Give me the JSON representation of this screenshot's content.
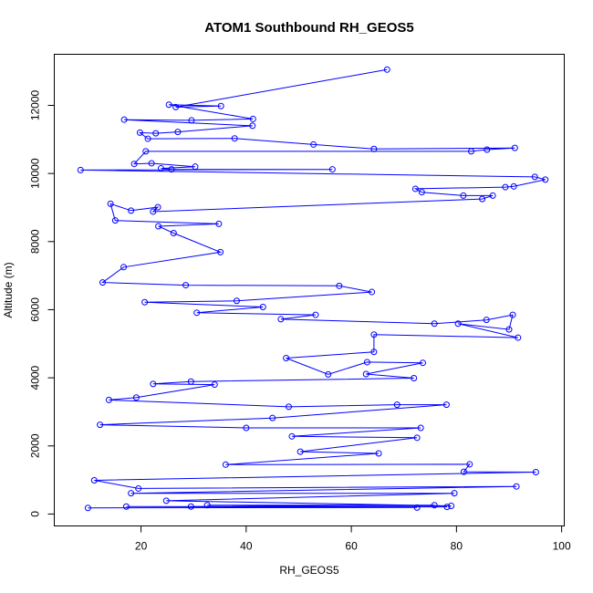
{
  "chart_data": {
    "type": "line",
    "title": "ATOM1 Southbound RH_GEOS5",
    "xlabel": "RH_GEOS5",
    "ylabel": "Altitude (m)",
    "xlim": [
      3.5,
      100.5
    ],
    "ylim": [
      -350,
      13500
    ],
    "xticks": [
      20,
      40,
      60,
      80,
      100
    ],
    "yticks": [
      0,
      2000,
      4000,
      6000,
      8000,
      10000,
      12000
    ],
    "grid": false,
    "legend": "none",
    "marker": "open-circle",
    "line_color": "#0000ff",
    "series": [
      {
        "x": [
          66.8,
          26.6,
          35.2,
          25.3,
          41.3,
          29.6,
          16.8,
          41.2,
          27,
          22.8,
          19.8,
          21.3,
          37.8,
          52.8,
          64.3,
          91.1,
          85.8,
          82.8,
          20.9,
          18.7,
          22,
          30.3,
          23.8,
          25.8,
          56.4,
          8.5,
          94.9,
          96.9,
          90.9,
          89.3,
          72.2,
          73.4,
          81.3,
          86.9,
          84.9,
          22.3,
          23.2,
          18.1,
          14.2,
          15.1,
          34.8,
          23.3,
          26.2,
          35.1,
          16.7,
          12.7,
          28.5,
          57.7,
          63.9,
          38.2,
          20.7,
          43.2,
          30.6,
          53.2,
          46.6,
          75.8,
          85.7,
          90.7,
          90,
          80.3,
          91.7,
          64.3,
          64.3,
          47.6,
          55.6,
          63,
          73.6,
          62.8,
          71.9,
          29.5,
          22.3,
          34,
          19.1,
          13.9,
          48.1,
          68.7,
          78.1,
          45,
          12.2,
          40,
          73.2,
          48.7,
          72.5,
          50.3,
          65.2,
          36.1,
          82.5,
          81.4,
          95.1,
          11.1,
          19.5,
          91.4,
          18.1,
          79.6,
          24.8,
          79,
          32.6,
          75.8,
          29.5,
          78.2,
          17.2,
          72.5,
          9.9
        ],
        "y": [
          13050,
          11950,
          11980,
          12020,
          11600,
          11560,
          11580,
          11400,
          11220,
          11180,
          11200,
          11020,
          11030,
          10850,
          10720,
          10750,
          10700,
          10650,
          10650,
          10280,
          10300,
          10200,
          10150,
          10120,
          10120,
          10100,
          9900,
          9820,
          9620,
          9600,
          9550,
          9450,
          9350,
          9350,
          9250,
          8880,
          9010,
          8910,
          9110,
          8620,
          8520,
          8450,
          8250,
          7690,
          7250,
          6800,
          6720,
          6700,
          6520,
          6260,
          6220,
          6080,
          5910,
          5850,
          5720,
          5590,
          5700,
          5850,
          5420,
          5590,
          5180,
          5270,
          4760,
          4580,
          4100,
          4460,
          4440,
          4110,
          3990,
          3890,
          3820,
          3800,
          3420,
          3350,
          3150,
          3210,
          3210,
          2820,
          2620,
          2530,
          2530,
          2280,
          2240,
          1830,
          1780,
          1450,
          1460,
          1240,
          1230,
          990,
          750,
          810,
          610,
          610,
          390,
          240,
          260,
          260,
          220,
          210,
          220,
          190,
          180
        ]
      }
    ]
  }
}
